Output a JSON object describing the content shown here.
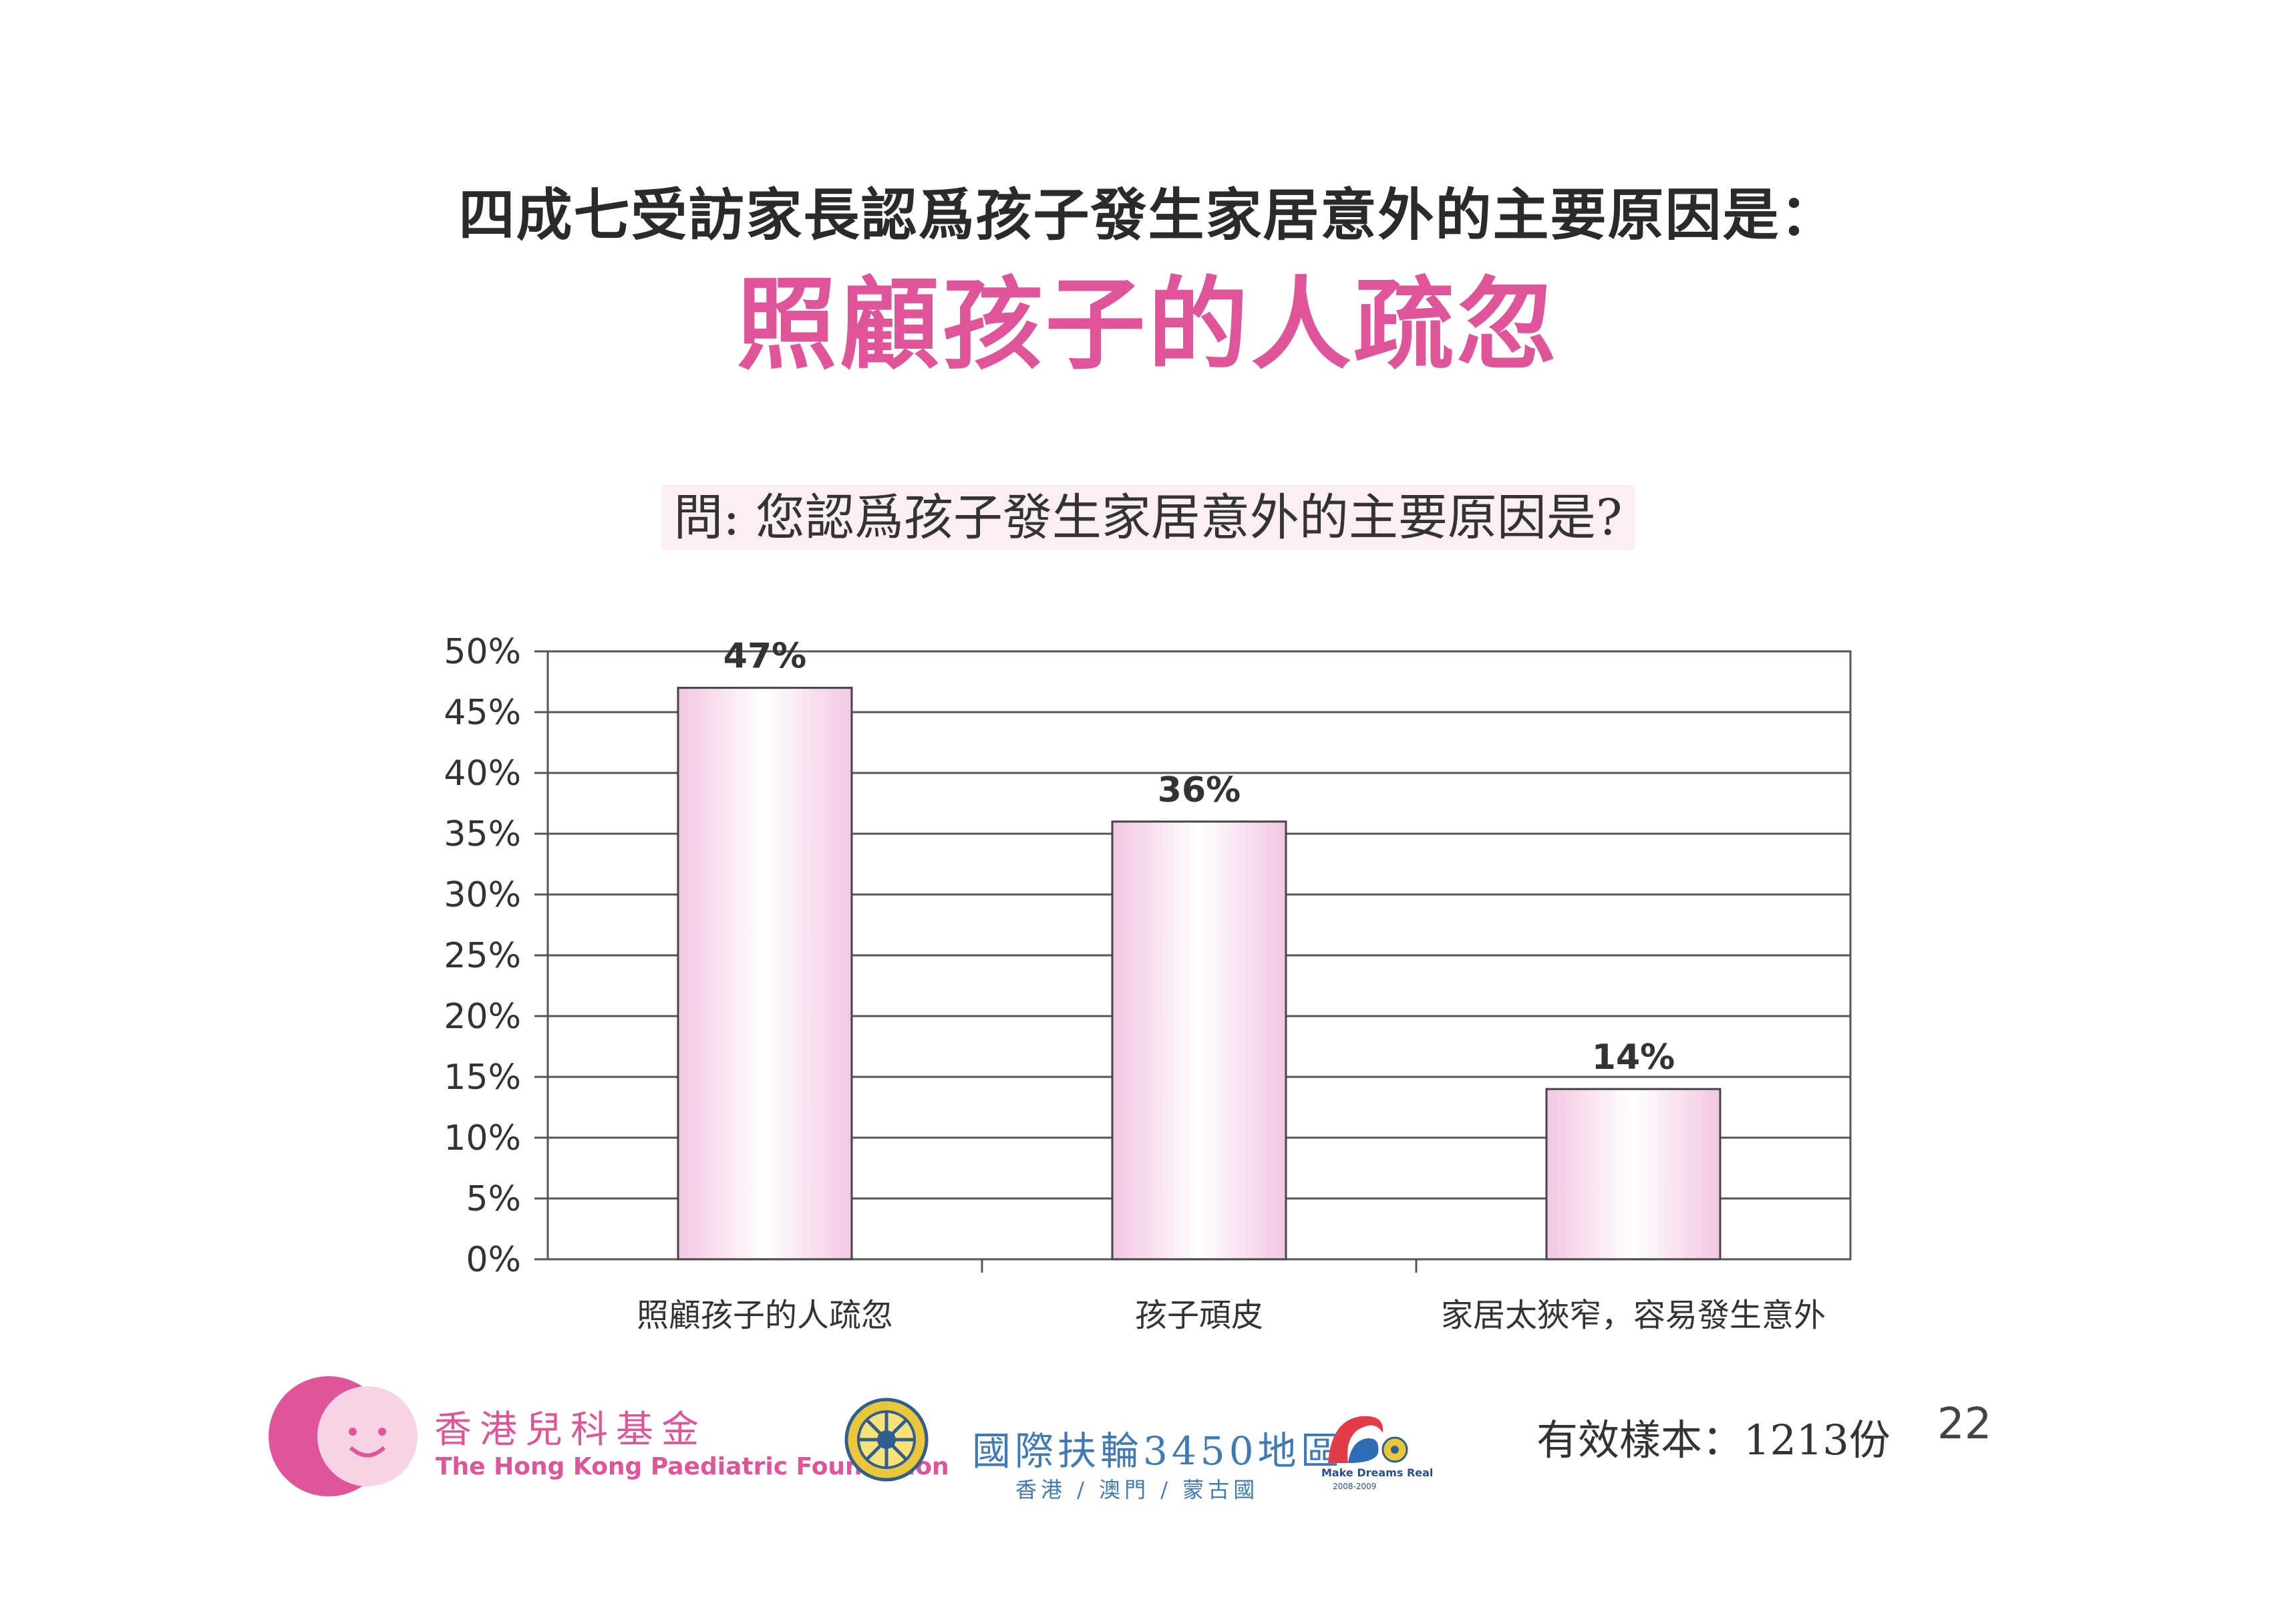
{
  "header": {
    "title": "四成七受訪家長認爲孩子發生家居意外的主要原因是：",
    "highlight": "照顧孩子的人疏忽"
  },
  "chart_data": {
    "type": "bar",
    "title": "問: 您認爲孩子發生家居意外的主要原因是?",
    "categories": [
      "照顧孩子的人疏忽",
      "孩子頑皮",
      "家居太狹窄，容易發生意外"
    ],
    "values": [
      47,
      36,
      14
    ],
    "data_labels": [
      "47%",
      "36%",
      "14%"
    ],
    "yticks": [
      "0%",
      "5%",
      "10%",
      "15%",
      "20%",
      "25%",
      "30%",
      "35%",
      "40%",
      "45%",
      "50%"
    ],
    "ylim": [
      0,
      50
    ],
    "grid": true,
    "xlabel": "",
    "ylabel": ""
  },
  "footer": {
    "hkpf_zh": "香港兒科基金",
    "hkpf_en": "The Hong Kong Paediatric Foundation",
    "rotary_zh": "國際扶輪3450地區",
    "rotary_sub": "香港 / 澳門 / 蒙古國",
    "mdr_text": "Make Dreams Real",
    "mdr_year": "2008-2009",
    "sample": "有效樣本：1213份",
    "page_number": "22"
  },
  "colors": {
    "accent": "#e0559a",
    "bar_fill_edge": "#f3c6e4",
    "bar_fill_center": "#ffffff",
    "rotary_blue": "#3f7ab7"
  }
}
